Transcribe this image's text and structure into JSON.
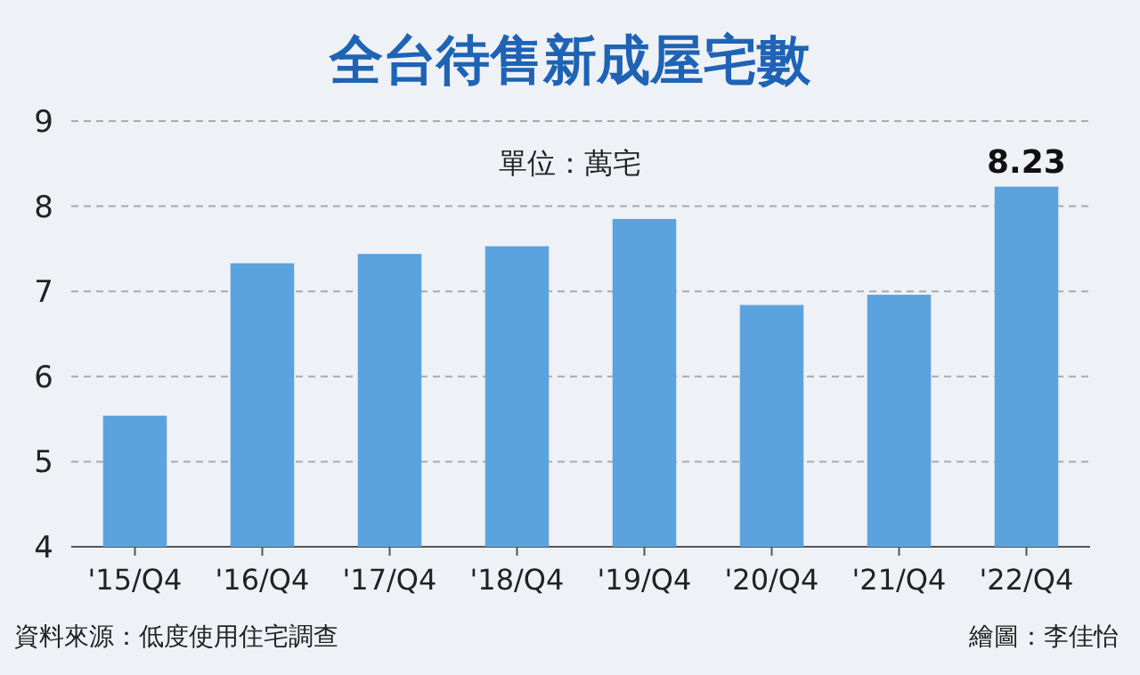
{
  "chart_data": {
    "type": "bar",
    "title": "全台待售新成屋宅數",
    "subtitle": "單位：萬宅",
    "categories": [
      "'15/Q4",
      "'16/Q4",
      "'17/Q4",
      "'18/Q4",
      "'19/Q4",
      "'20/Q4",
      "'21/Q4",
      "'22/Q4"
    ],
    "values": [
      5.54,
      7.33,
      7.44,
      7.53,
      7.85,
      6.84,
      6.96,
      8.23
    ],
    "value_labels": [
      null,
      null,
      null,
      null,
      null,
      null,
      null,
      "8.23"
    ],
    "color": "#5ba3de",
    "ylim": [
      4,
      9
    ],
    "yticks": [
      4,
      5,
      6,
      7,
      8,
      9
    ],
    "grid": "y",
    "annotations": [
      "資料來源：低度使用住宅調查",
      "繪圖：李佳怡"
    ]
  }
}
